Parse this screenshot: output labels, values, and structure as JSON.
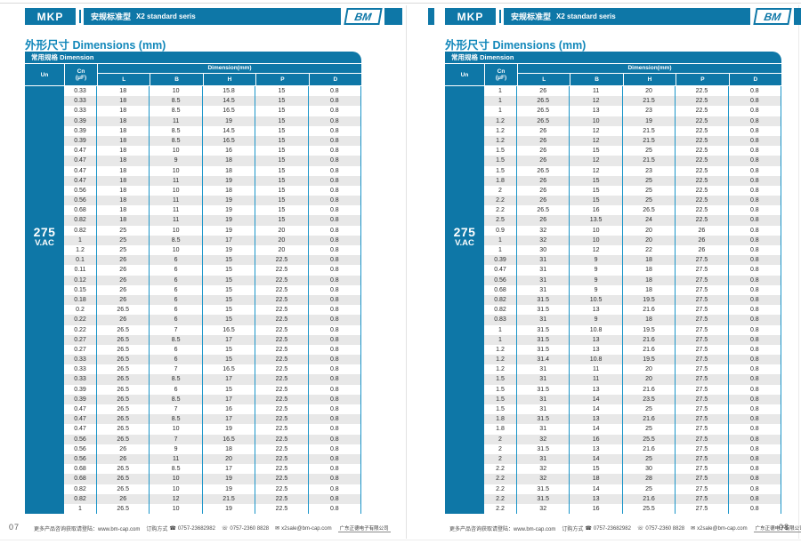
{
  "colors": {
    "accent": "#0e77a7",
    "title": "#1187ba",
    "divider": "#1b95c9",
    "stripe": "#e8e8e8"
  },
  "icons": {
    "phone": "☎",
    "fax": "☏",
    "email": "✉"
  },
  "pages": [
    {
      "page_number": "07",
      "header": {
        "product": "MKP",
        "series_cn": "安规标准型",
        "series_en": "X2 standard seris",
        "logo": "BM"
      },
      "section_title": "外形尺寸 Dimensions (mm)",
      "table": {
        "tab": "常用规格 Dimension",
        "col_un": "Un",
        "col_cn": "Cn",
        "col_cn_unit": "(μF)",
        "col_dim_group": "Dimension(mm)",
        "dim_cols": [
          "L",
          "B",
          "H",
          "P",
          "D"
        ],
        "voltage": "275",
        "voltage_unit": "V.AC",
        "rows": [
          [
            "0.33",
            "18",
            "10",
            "15.8",
            "15",
            "0.8"
          ],
          [
            "0.33",
            "18",
            "8.5",
            "14.5",
            "15",
            "0.8"
          ],
          [
            "0.33",
            "18",
            "8.5",
            "16.5",
            "15",
            "0.8"
          ],
          [
            "0.39",
            "18",
            "11",
            "19",
            "15",
            "0.8"
          ],
          [
            "0.39",
            "18",
            "8.5",
            "14.5",
            "15",
            "0.8"
          ],
          [
            "0.39",
            "18",
            "8.5",
            "16.5",
            "15",
            "0.8"
          ],
          [
            "0.47",
            "18",
            "10",
            "16",
            "15",
            "0.8"
          ],
          [
            "0.47",
            "18",
            "9",
            "18",
            "15",
            "0.8"
          ],
          [
            "0.47",
            "18",
            "10",
            "18",
            "15",
            "0.8"
          ],
          [
            "0.47",
            "18",
            "11",
            "19",
            "15",
            "0.8"
          ],
          [
            "0.56",
            "18",
            "10",
            "18",
            "15",
            "0.8"
          ],
          [
            "0.56",
            "18",
            "11",
            "19",
            "15",
            "0.8"
          ],
          [
            "0.68",
            "18",
            "11",
            "19",
            "15",
            "0.8"
          ],
          [
            "0.82",
            "18",
            "11",
            "19",
            "15",
            "0.8"
          ],
          [
            "0.82",
            "25",
            "10",
            "19",
            "20",
            "0.8"
          ],
          [
            "1",
            "25",
            "8.5",
            "17",
            "20",
            "0.8"
          ],
          [
            "1.2",
            "25",
            "10",
            "19",
            "20",
            "0.8"
          ],
          [
            "0.1",
            "26",
            "6",
            "15",
            "22.5",
            "0.8"
          ],
          [
            "0.11",
            "26",
            "6",
            "15",
            "22.5",
            "0.8"
          ],
          [
            "0.12",
            "26",
            "6",
            "15",
            "22.5",
            "0.8"
          ],
          [
            "0.15",
            "26",
            "6",
            "15",
            "22.5",
            "0.8"
          ],
          [
            "0.18",
            "26",
            "6",
            "15",
            "22.5",
            "0.8"
          ],
          [
            "0.2",
            "26.5",
            "6",
            "15",
            "22.5",
            "0.8"
          ],
          [
            "0.22",
            "26",
            "6",
            "15",
            "22.5",
            "0.8"
          ],
          [
            "0.22",
            "26.5",
            "7",
            "16.5",
            "22.5",
            "0.8"
          ],
          [
            "0.27",
            "26.5",
            "8.5",
            "17",
            "22.5",
            "0.8"
          ],
          [
            "0.27",
            "26.5",
            "6",
            "15",
            "22.5",
            "0.8"
          ],
          [
            "0.33",
            "26.5",
            "6",
            "15",
            "22.5",
            "0.8"
          ],
          [
            "0.33",
            "26.5",
            "7",
            "16.5",
            "22.5",
            "0.8"
          ],
          [
            "0.33",
            "26.5",
            "8.5",
            "17",
            "22.5",
            "0.8"
          ],
          [
            "0.39",
            "26.5",
            "6",
            "15",
            "22.5",
            "0.8"
          ],
          [
            "0.39",
            "26.5",
            "8.5",
            "17",
            "22.5",
            "0.8"
          ],
          [
            "0.47",
            "26.5",
            "7",
            "16",
            "22.5",
            "0.8"
          ],
          [
            "0.47",
            "26.5",
            "8.5",
            "17",
            "22.5",
            "0.8"
          ],
          [
            "0.47",
            "26.5",
            "10",
            "19",
            "22.5",
            "0.8"
          ],
          [
            "0.56",
            "26.5",
            "7",
            "16.5",
            "22.5",
            "0.8"
          ],
          [
            "0.56",
            "26",
            "9",
            "18",
            "22.5",
            "0.8"
          ],
          [
            "0.56",
            "26",
            "11",
            "20",
            "22.5",
            "0.8"
          ],
          [
            "0.68",
            "26.5",
            "8.5",
            "17",
            "22.5",
            "0.8"
          ],
          [
            "0.68",
            "26.5",
            "10",
            "19",
            "22.5",
            "0.8"
          ],
          [
            "0.82",
            "26.5",
            "10",
            "19",
            "22.5",
            "0.8"
          ],
          [
            "0.82",
            "26",
            "12",
            "21.5",
            "22.5",
            "0.8"
          ],
          [
            "1",
            "26.5",
            "10",
            "19",
            "22.5",
            "0.8"
          ]
        ]
      },
      "footer": {
        "info": "更多产品咨询获取请登陆：www.bm-cap.com",
        "order_label": "订购方式",
        "phone": "0757-23682982",
        "phone2": "0757-2360 8828",
        "email": "x2sale@bm-cap.com",
        "company_mark": "广东正德电子有限公司"
      }
    },
    {
      "page_number": "08",
      "header": {
        "product": "MKP",
        "series_cn": "安规标准型",
        "series_en": "X2 standard seris",
        "logo": "BM"
      },
      "section_title": "外形尺寸 Dimensions (mm)",
      "table": {
        "tab": "常用规格 Dimension",
        "col_un": "Un",
        "col_cn": "Cn",
        "col_cn_unit": "(μF)",
        "col_dim_group": "Dimension(mm)",
        "dim_cols": [
          "L",
          "B",
          "H",
          "P",
          "D"
        ],
        "voltage": "275",
        "voltage_unit": "V.AC",
        "rows": [
          [
            "1",
            "26",
            "11",
            "20",
            "22.5",
            "0.8"
          ],
          [
            "1",
            "26.5",
            "12",
            "21.5",
            "22.5",
            "0.8"
          ],
          [
            "1",
            "26.5",
            "13",
            "23",
            "22.5",
            "0.8"
          ],
          [
            "1.2",
            "26.5",
            "10",
            "19",
            "22.5",
            "0.8"
          ],
          [
            "1.2",
            "26",
            "12",
            "21.5",
            "22.5",
            "0.8"
          ],
          [
            "1.2",
            "26",
            "12",
            "21.5",
            "22.5",
            "0.8"
          ],
          [
            "1.5",
            "26",
            "15",
            "25",
            "22.5",
            "0.8"
          ],
          [
            "1.5",
            "26",
            "12",
            "21.5",
            "22.5",
            "0.8"
          ],
          [
            "1.5",
            "26.5",
            "12",
            "23",
            "22.5",
            "0.8"
          ],
          [
            "1.8",
            "26",
            "15",
            "25",
            "22.5",
            "0.8"
          ],
          [
            "2",
            "26",
            "15",
            "25",
            "22.5",
            "0.8"
          ],
          [
            "2.2",
            "26",
            "15",
            "25",
            "22.5",
            "0.8"
          ],
          [
            "2.2",
            "26.5",
            "16",
            "26.5",
            "22.5",
            "0.8"
          ],
          [
            "2.5",
            "26",
            "13.5",
            "24",
            "22.5",
            "0.8"
          ],
          [
            "0.9",
            "32",
            "10",
            "20",
            "26",
            "0.8"
          ],
          [
            "1",
            "32",
            "10",
            "20",
            "26",
            "0.8"
          ],
          [
            "1",
            "30",
            "12",
            "22",
            "26",
            "0.8"
          ],
          [
            "0.39",
            "31",
            "9",
            "18",
            "27.5",
            "0.8"
          ],
          [
            "0.47",
            "31",
            "9",
            "18",
            "27.5",
            "0.8"
          ],
          [
            "0.56",
            "31",
            "9",
            "18",
            "27.5",
            "0.8"
          ],
          [
            "0.68",
            "31",
            "9",
            "18",
            "27.5",
            "0.8"
          ],
          [
            "0.82",
            "31.5",
            "10.5",
            "19.5",
            "27.5",
            "0.8"
          ],
          [
            "0.82",
            "31.5",
            "13",
            "21.6",
            "27.5",
            "0.8"
          ],
          [
            "0.83",
            "31",
            "9",
            "18",
            "27.5",
            "0.8"
          ],
          [
            "1",
            "31.5",
            "10.8",
            "19.5",
            "27.5",
            "0.8"
          ],
          [
            "1",
            "31.5",
            "13",
            "21.6",
            "27.5",
            "0.8"
          ],
          [
            "1.2",
            "31.5",
            "13",
            "21.6",
            "27.5",
            "0.8"
          ],
          [
            "1.2",
            "31.4",
            "10.8",
            "19.5",
            "27.5",
            "0.8"
          ],
          [
            "1.2",
            "31",
            "11",
            "20",
            "27.5",
            "0.8"
          ],
          [
            "1.5",
            "31",
            "11",
            "20",
            "27.5",
            "0.8"
          ],
          [
            "1.5",
            "31.5",
            "13",
            "21.6",
            "27.5",
            "0.8"
          ],
          [
            "1.5",
            "31",
            "14",
            "23.5",
            "27.5",
            "0.8"
          ],
          [
            "1.5",
            "31",
            "14",
            "25",
            "27.5",
            "0.8"
          ],
          [
            "1.8",
            "31.5",
            "13",
            "21.6",
            "27.5",
            "0.8"
          ],
          [
            "1.8",
            "31",
            "14",
            "25",
            "27.5",
            "0.8"
          ],
          [
            "2",
            "32",
            "16",
            "25.5",
            "27.5",
            "0.8"
          ],
          [
            "2",
            "31.5",
            "13",
            "21.6",
            "27.5",
            "0.8"
          ],
          [
            "2",
            "31",
            "14",
            "25",
            "27.5",
            "0.8"
          ],
          [
            "2.2",
            "32",
            "15",
            "30",
            "27.5",
            "0.8"
          ],
          [
            "2.2",
            "32",
            "18",
            "28",
            "27.5",
            "0.8"
          ],
          [
            "2.2",
            "31.5",
            "14",
            "25",
            "27.5",
            "0.8"
          ],
          [
            "2.2",
            "31.5",
            "13",
            "21.6",
            "27.5",
            "0.8"
          ],
          [
            "2.2",
            "32",
            "16",
            "25.5",
            "27.5",
            "0.8"
          ]
        ]
      },
      "footer": {
        "info": "更多产品咨询获取请登陆：www.bm-cap.com",
        "order_label": "订购方式",
        "phone": "0757-23682982",
        "phone2": "0757-2360 8828",
        "email": "x2sale@bm-cap.com",
        "company_mark": "广东正德电子有限公司"
      }
    }
  ]
}
